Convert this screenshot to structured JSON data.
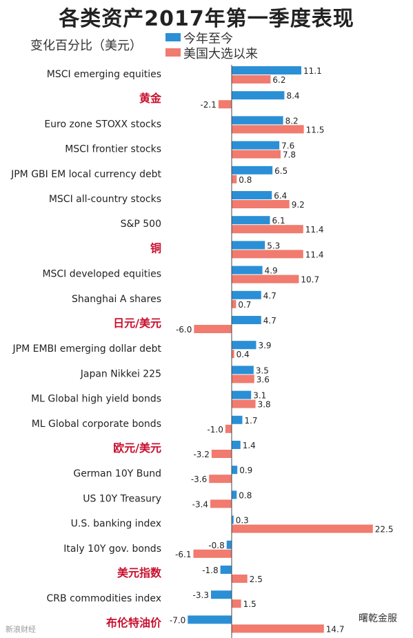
{
  "chart_data": {
    "type": "bar",
    "orientation": "horizontal",
    "title": "各类资产2017年第一季度表现",
    "subtitle": "变化百分比（美元）",
    "xlabel": "",
    "ylabel": "",
    "xlim": [
      -7.2,
      22.5
    ],
    "grid": false,
    "legend_position": "top",
    "categories": [
      "MSCI emerging equities",
      "黄金",
      "Euro zone STOXX stocks",
      "MSCI frontier stocks",
      "JPM GBI EM local currency debt",
      "MSCI all-country stocks",
      "S&P 500",
      "铜",
      "MSCI developed equities",
      "Shanghai A shares",
      "日元/美元",
      "JPM EMBI emerging dollar debt",
      "Japan Nikkei 225",
      "ML Global high yield bonds",
      "ML Global corporate bonds",
      "欧元/美元",
      "German 10Y Bund",
      "US 10Y Treasury",
      "U.S. banking index",
      "Italy 10Y gov. bonds",
      "美元指数",
      "CRB commodities index",
      "布伦特油价"
    ],
    "highlighted_categories": [
      "黄金",
      "铜",
      "日元/美元",
      "欧元/美元",
      "美元指数",
      "布伦特油价"
    ],
    "series": [
      {
        "name": "今年至今",
        "color": "#2b8fd6",
        "values": [
          11.1,
          8.4,
          8.2,
          7.6,
          6.5,
          6.4,
          6.1,
          5.3,
          4.9,
          4.7,
          4.7,
          3.9,
          3.5,
          3.1,
          1.7,
          1.4,
          0.9,
          0.8,
          0.3,
          -0.8,
          -1.8,
          -3.3,
          -7.0
        ]
      },
      {
        "name": "美国大选以来",
        "color": "#f07b6e",
        "values": [
          6.2,
          -2.1,
          11.5,
          7.8,
          0.8,
          9.2,
          11.4,
          11.4,
          10.7,
          0.7,
          -6.0,
          0.4,
          3.6,
          3.8,
          -1.0,
          -3.2,
          -3.6,
          -3.4,
          22.5,
          -6.1,
          2.5,
          1.5,
          14.7
        ]
      }
    ]
  },
  "colors": {
    "highlight_text": "#c8102e",
    "axis": "#444444"
  },
  "watermark": {
    "left": "新浪财经",
    "right": "曙乾金服"
  }
}
